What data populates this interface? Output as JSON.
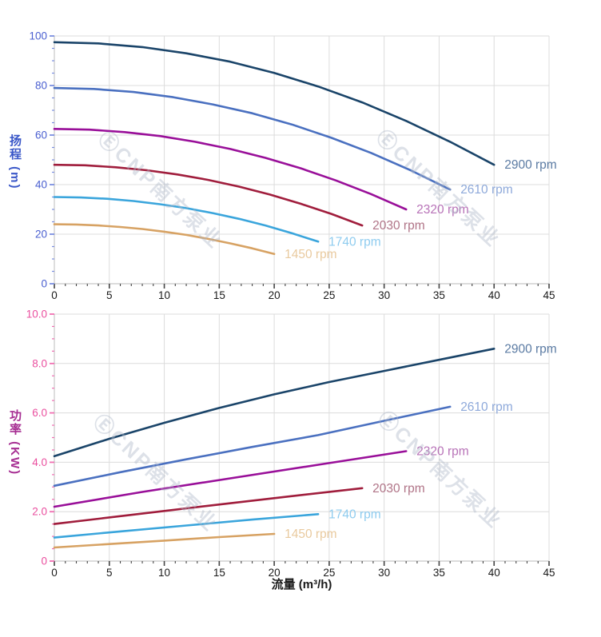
{
  "watermark": {
    "text": "ⒺCNP南方泵业"
  },
  "colors": {
    "grid": "#dcdcdc",
    "axis_line": "#c8c8c8",
    "x_tick": "#444444",
    "x_tick_label": "#1a1a1a",
    "head_axis_title": "#3a57c8",
    "head_tick": "#7b8fe0",
    "head_tick_label": "#4a5fd0",
    "power_axis_title": "#a62d92",
    "power_tick": "#f06fb2",
    "power_tick_label": "#ea4f9f",
    "watermark": "#adb8c9"
  },
  "chart_data": [
    {
      "id": "head-vs-flow",
      "type": "line",
      "ylabel": "扬程 (m)",
      "xlim": [
        0,
        45
      ],
      "ylim": [
        0,
        100
      ],
      "x_major_ticks": [
        0,
        5,
        10,
        15,
        20,
        25,
        30,
        35,
        40,
        45
      ],
      "x_tick_labels": [
        "0",
        "5",
        "10",
        "15",
        "20",
        "25",
        "30",
        "35",
        "40",
        "45"
      ],
      "x_minor_step": 1,
      "y_major_ticks": [
        0,
        20,
        40,
        60,
        80,
        100
      ],
      "y_tick_labels": [
        "0",
        "20",
        "40",
        "60",
        "80",
        "100"
      ],
      "y_minor_step": 5,
      "tick_color": "#7b8fe0",
      "num_color": "#4a5fd0",
      "grid": true,
      "legend_position": "right-of-curve-end",
      "series": [
        {
          "name": "2900 rpm",
          "color": "#1a4469",
          "label_color": "#5b7ba3",
          "x": [
            0,
            4,
            8,
            12,
            16,
            20,
            24,
            28,
            32,
            36,
            40
          ],
          "y": [
            97.5,
            97,
            95.5,
            93,
            89.6,
            85.1,
            79.6,
            73.2,
            65.7,
            57.3,
            48
          ]
        },
        {
          "name": "2610 rpm",
          "color": "#4a70c0",
          "label_color": "#8ea9da",
          "x": [
            0,
            3.6,
            7.2,
            10.8,
            14.4,
            18,
            21.6,
            25.2,
            28.8,
            32.4,
            36
          ],
          "y": [
            79,
            78.6,
            77.4,
            75.3,
            72.4,
            68.8,
            64.3,
            58.9,
            52.8,
            45.8,
            38
          ]
        },
        {
          "name": "2320 rpm",
          "color": "#990f99",
          "label_color": "#b873b8",
          "x": [
            0,
            3.2,
            6.4,
            9.6,
            12.8,
            16,
            19.2,
            22.4,
            25.6,
            28.8,
            32
          ],
          "y": [
            62.5,
            62.2,
            61.2,
            59.6,
            57.3,
            54.4,
            50.8,
            46.6,
            41.7,
            36.2,
            30
          ]
        },
        {
          "name": "2030 rpm",
          "color": "#a01d3c",
          "label_color": "#b07487",
          "x": [
            0,
            2.8,
            5.6,
            8.4,
            11.2,
            14,
            16.8,
            19.6,
            22.4,
            25.2,
            28
          ],
          "y": [
            48,
            47.8,
            47,
            45.8,
            44.1,
            41.9,
            39.2,
            36,
            32.3,
            28.2,
            23.5
          ]
        },
        {
          "name": "1740 rpm",
          "color": "#3aa5dc",
          "label_color": "#8fccef",
          "x": [
            0,
            2.4,
            4.8,
            7.2,
            9.6,
            12,
            14.4,
            16.8,
            19.2,
            21.6,
            24
          ],
          "y": [
            35,
            34.8,
            34.3,
            33.4,
            32.1,
            30.5,
            28.5,
            26.2,
            23.5,
            20.4,
            17
          ]
        },
        {
          "name": "1450 rpm",
          "color": "#d7a263",
          "label_color": "#e9ca9f",
          "x": [
            0,
            2,
            4,
            6,
            8,
            10,
            12,
            14,
            16,
            18,
            20
          ],
          "y": [
            24,
            23.9,
            23.5,
            22.9,
            22.1,
            21,
            19.7,
            18.1,
            16.3,
            14.3,
            12
          ]
        }
      ]
    },
    {
      "id": "power-vs-flow",
      "type": "line",
      "ylabel": "功率 (KW)",
      "xlabel": "流量 (m³/h)",
      "xlim": [
        0,
        45
      ],
      "ylim": [
        0,
        10
      ],
      "x_major_ticks": [
        0,
        5,
        10,
        15,
        20,
        25,
        30,
        35,
        40,
        45
      ],
      "x_tick_labels": [
        "0",
        "5",
        "10",
        "15",
        "20",
        "25",
        "30",
        "35",
        "40",
        "45"
      ],
      "x_minor_step": 1,
      "y_major_ticks": [
        0,
        2,
        4,
        6,
        8,
        10
      ],
      "y_tick_labels": [
        "0",
        "2.0",
        "4.0",
        "6.0",
        "8.0",
        "10.0"
      ],
      "y_minor_step": 0.5,
      "tick_color": "#f06fb2",
      "num_color": "#ea4f9f",
      "grid": true,
      "legend_position": "right-of-curve-end",
      "series": [
        {
          "name": "2900 rpm",
          "color": "#1a4469",
          "label_color": "#5b7ba3",
          "x": [
            0,
            5,
            10,
            15,
            20,
            25,
            30,
            35,
            40
          ],
          "y": [
            4.25,
            4.95,
            5.6,
            6.2,
            6.75,
            7.25,
            7.7,
            8.15,
            8.6
          ]
        },
        {
          "name": "2610 rpm",
          "color": "#4a70c0",
          "label_color": "#8ea9da",
          "x": [
            0,
            6,
            12,
            18,
            24,
            30,
            36
          ],
          "y": [
            3.05,
            3.6,
            4.12,
            4.62,
            5.1,
            5.68,
            6.25
          ]
        },
        {
          "name": "2320 rpm",
          "color": "#990f99",
          "label_color": "#b873b8",
          "x": [
            0,
            8,
            16,
            24,
            32
          ],
          "y": [
            2.2,
            2.8,
            3.35,
            3.9,
            4.45
          ]
        },
        {
          "name": "2030 rpm",
          "color": "#a01d3c",
          "label_color": "#b07487",
          "x": [
            0,
            7,
            14,
            21,
            28
          ],
          "y": [
            1.5,
            1.87,
            2.24,
            2.6,
            2.95
          ]
        },
        {
          "name": "1740 rpm",
          "color": "#3aa5dc",
          "label_color": "#8fccef",
          "x": [
            0,
            6,
            12,
            18,
            24
          ],
          "y": [
            0.95,
            1.2,
            1.44,
            1.68,
            1.9
          ]
        },
        {
          "name": "1450 rpm",
          "color": "#d7a263",
          "label_color": "#e9ca9f",
          "x": [
            0,
            5,
            10,
            15,
            20
          ],
          "y": [
            0.55,
            0.69,
            0.83,
            0.97,
            1.1
          ]
        }
      ]
    }
  ]
}
